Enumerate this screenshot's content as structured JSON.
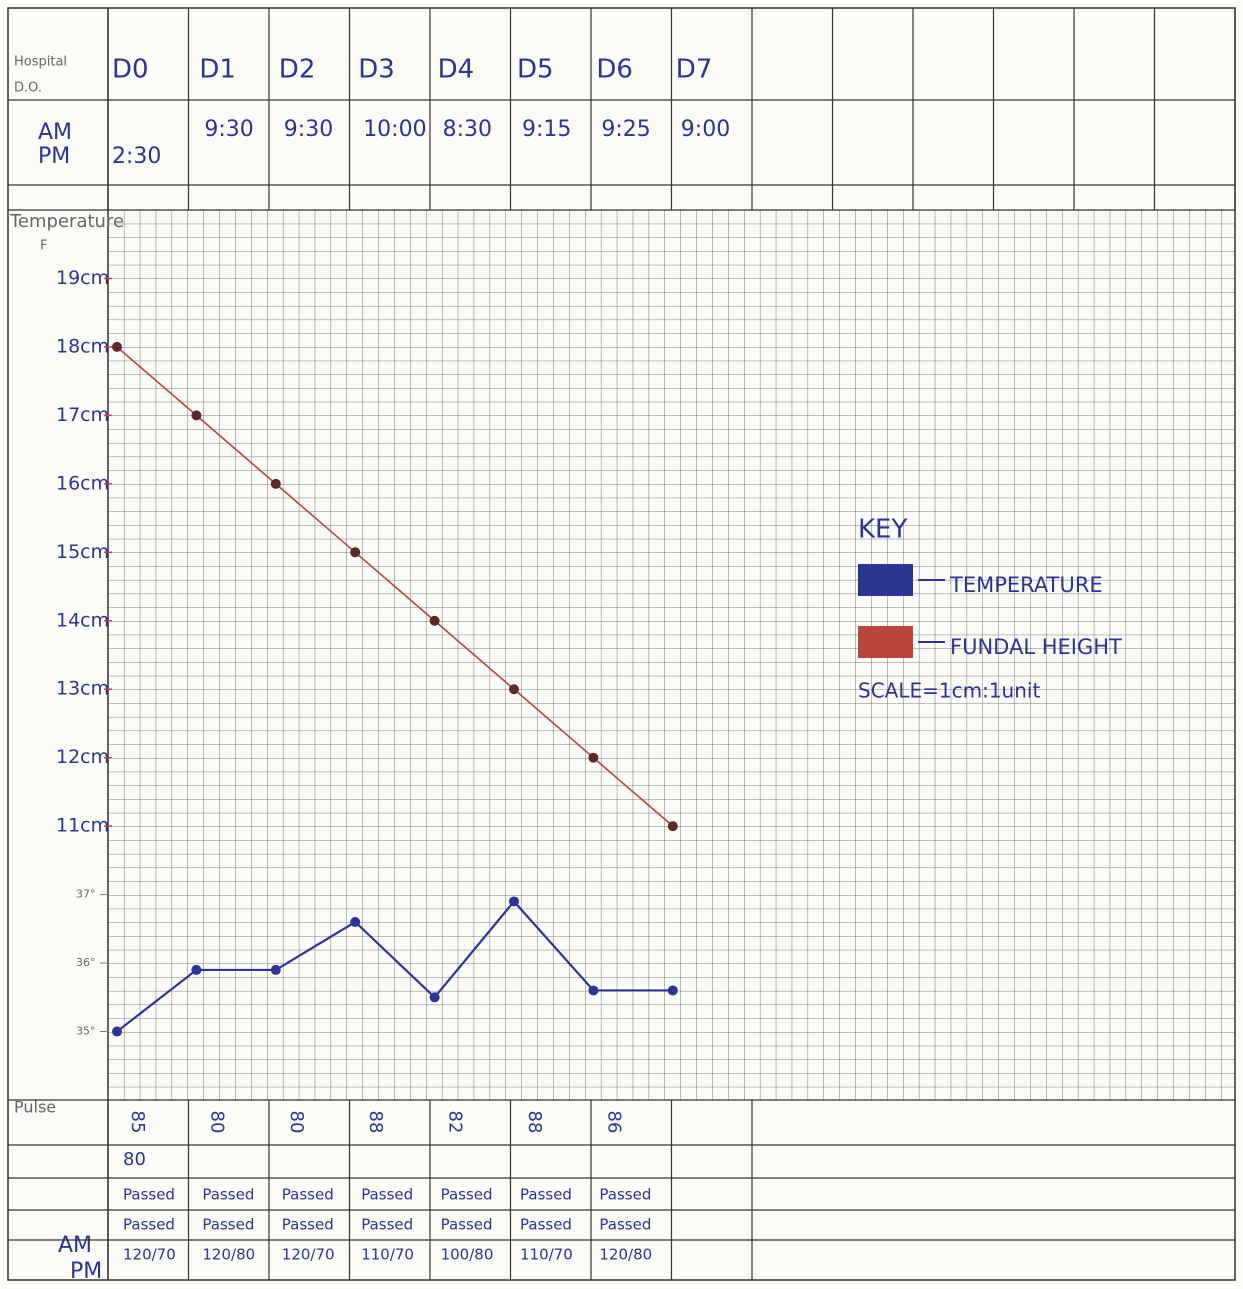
{
  "sheet": {
    "header_labels": [
      "Hospital",
      "D.O."
    ],
    "time_labels": [
      "AM",
      "PM"
    ],
    "am_times": [
      "9:30",
      "9:30",
      "10:00",
      "8:30",
      "9:15",
      "9:25",
      "9:00"
    ],
    "pm_time": "2:30",
    "temperature_label": "Temperature",
    "unit_label": "F",
    "pulse_label": "Pulse",
    "pulse": [
      85,
      80,
      80,
      88,
      82,
      88,
      86
    ],
    "pulse_extra": 80,
    "passed_rows": [
      [
        "Passed",
        "Passed",
        "Passed",
        "Passed",
        "Passed",
        "Passed",
        "Passed"
      ],
      [
        "Passed",
        "Passed",
        "Passed",
        "Passed",
        "Passed",
        "Passed",
        "Passed"
      ]
    ],
    "bp_labels": [
      "AM",
      "PM"
    ],
    "bp": [
      "120/70",
      "120/80",
      "120/70",
      "110/70",
      "100/80",
      "110/70",
      "120/80"
    ]
  },
  "chart_data": {
    "type": "line",
    "categories": [
      "D0",
      "D1",
      "D2",
      "D3",
      "D4",
      "D5",
      "D6",
      "D7"
    ],
    "series": [
      {
        "name": "FUNDAL HEIGHT",
        "color": "#b8453c",
        "values": [
          18,
          17,
          16,
          15,
          14,
          13,
          12,
          11
        ]
      },
      {
        "name": "TEMPERATURE",
        "color": "#2c3590",
        "axis": "y2",
        "values": [
          35.0,
          35.9,
          35.9,
          36.6,
          35.5,
          36.9,
          35.6,
          35.6
        ]
      }
    ],
    "ylim": [
      7,
      20
    ],
    "yticks": [
      {
        "value": 11,
        "label": "11cm"
      },
      {
        "value": 12,
        "label": "12cm"
      },
      {
        "value": 13,
        "label": "13cm"
      },
      {
        "value": 14,
        "label": "14cm"
      },
      {
        "value": 15,
        "label": "15cm"
      },
      {
        "value": 16,
        "label": "16cm"
      },
      {
        "value": 17,
        "label": "17cm"
      },
      {
        "value": 18,
        "label": "18cm"
      },
      {
        "value": 19,
        "label": "19cm"
      }
    ],
    "y2lim": [
      34,
      47
    ],
    "y2ticks": [
      {
        "value": 35,
        "label": "35°"
      },
      {
        "value": 36,
        "label": "36°"
      },
      {
        "value": 37,
        "label": "37°"
      }
    ],
    "legend_title": "KEY",
    "annotation": "SCALE=1cm:1unit"
  }
}
